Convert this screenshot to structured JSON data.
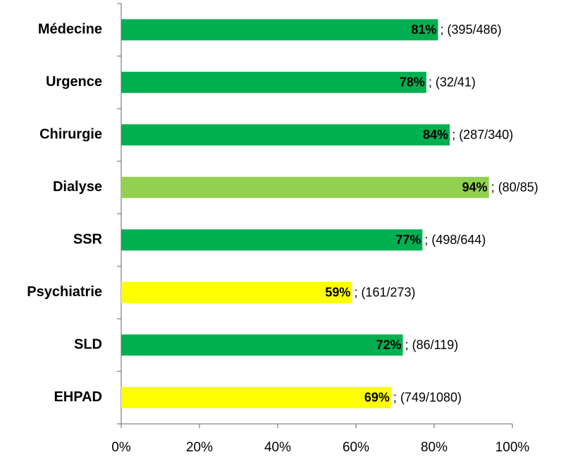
{
  "chart_data": {
    "type": "bar",
    "orientation": "horizontal",
    "categories": [
      "Médecine",
      "Urgence",
      "Chirurgie",
      "Dialyse",
      "SSR",
      "Psychiatrie",
      "SLD",
      "EHPAD"
    ],
    "values": [
      81,
      78,
      84,
      94,
      77,
      59,
      72,
      69
    ],
    "value_labels": [
      "81%",
      "78%",
      "84%",
      "94%",
      "77%",
      "59%",
      "72%",
      "69%"
    ],
    "details": [
      "; (395/486)",
      "; (32/41)",
      "; (287/340)",
      "; (80/85)",
      "; (498/644)",
      "; (161/273)",
      "; (86/119)",
      "; (749/1080)"
    ],
    "colors": [
      "#00b050",
      "#00b050",
      "#00b050",
      "#92d050",
      "#00b050",
      "#ffff00",
      "#00b050",
      "#ffff00"
    ],
    "xlim": [
      0,
      100
    ],
    "xticks": [
      {
        "value": 0,
        "label": "0%"
      },
      {
        "value": 20,
        "label": "20%"
      },
      {
        "value": 40,
        "label": "40%"
      },
      {
        "value": 60,
        "label": "60%"
      },
      {
        "value": 80,
        "label": "80%"
      },
      {
        "value": 100,
        "label": "100%"
      }
    ],
    "grid": false
  }
}
